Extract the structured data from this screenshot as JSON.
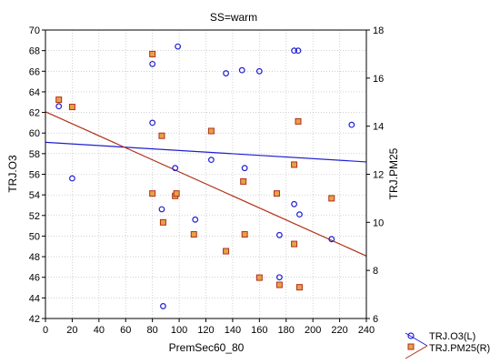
{
  "chart_data": {
    "type": "scatter",
    "title": "SS=warm",
    "xlabel": "PremSec60_80",
    "ylabel_left": "TRJ.O3",
    "ylabel_right": "TRJ.PM25",
    "xlim": [
      0,
      240
    ],
    "ylim_left": [
      42,
      70
    ],
    "ylim_right": [
      6,
      18
    ],
    "x_ticks": [
      0,
      20,
      40,
      60,
      80,
      100,
      120,
      140,
      160,
      180,
      200,
      220,
      240
    ],
    "y_ticks_left": [
      42,
      44,
      46,
      48,
      50,
      52,
      54,
      56,
      58,
      60,
      62,
      64,
      66,
      68,
      70
    ],
    "y_ticks_right": [
      6,
      8,
      10,
      12,
      14,
      16,
      18
    ],
    "grid": true,
    "legend_position": "bottom-right outside",
    "series": [
      {
        "name": "TRJ.O3(L)",
        "axis": "left",
        "color": "#1f1fd0",
        "marker": "circle",
        "points": [
          [
            10,
            62.6
          ],
          [
            20,
            55.6
          ],
          [
            80,
            66.7
          ],
          [
            80,
            61.0
          ],
          [
            87,
            52.6
          ],
          [
            88,
            43.2
          ],
          [
            97,
            56.6
          ],
          [
            99,
            68.4
          ],
          [
            112,
            51.6
          ],
          [
            124,
            57.4
          ],
          [
            135,
            65.8
          ],
          [
            147,
            66.1
          ],
          [
            149,
            56.6
          ],
          [
            160,
            66.0
          ],
          [
            175,
            50.1
          ],
          [
            175,
            46.0
          ],
          [
            186,
            68.0
          ],
          [
            189,
            68.0
          ],
          [
            186,
            53.1
          ],
          [
            190,
            52.1
          ],
          [
            214,
            49.7
          ],
          [
            229,
            60.8
          ]
        ],
        "fit": [
          [
            0,
            59.1
          ],
          [
            240,
            57.2
          ]
        ]
      },
      {
        "name": "TRJ.PM25(R)",
        "axis": "right",
        "color": "#b03018",
        "marker": "square",
        "points": [
          [
            10,
            15.1
          ],
          [
            20,
            14.8
          ],
          [
            80,
            17.0
          ],
          [
            80,
            11.2
          ],
          [
            87,
            13.6
          ],
          [
            88,
            10.0
          ],
          [
            97,
            11.1
          ],
          [
            98,
            11.2
          ],
          [
            111,
            9.5
          ],
          [
            124,
            13.8
          ],
          [
            135,
            8.8
          ],
          [
            148,
            11.7
          ],
          [
            149,
            9.5
          ],
          [
            160,
            7.7
          ],
          [
            173,
            11.2
          ],
          [
            175,
            7.4
          ],
          [
            186,
            12.4
          ],
          [
            186,
            9.1
          ],
          [
            189,
            14.2
          ],
          [
            190,
            7.3
          ],
          [
            214,
            11.0
          ]
        ],
        "fit": [
          [
            0,
            14.6
          ],
          [
            240,
            8.6
          ]
        ]
      }
    ]
  }
}
